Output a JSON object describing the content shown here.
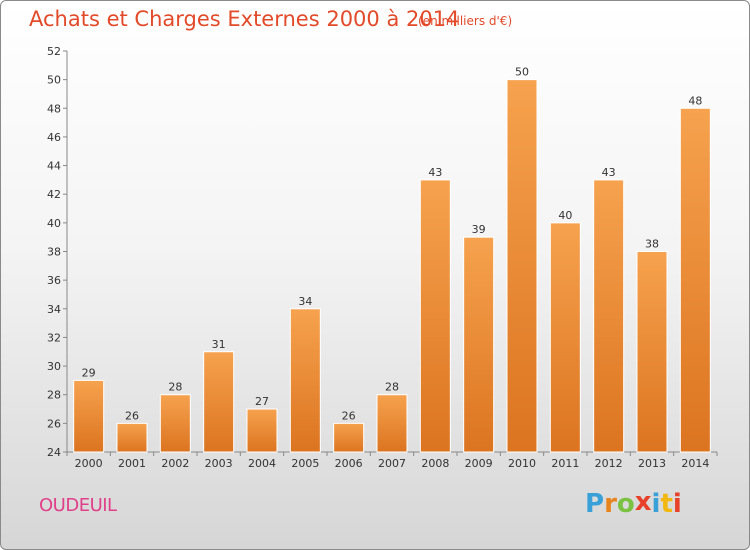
{
  "title": "Achats et Charges Externes 2000 à 2014",
  "subtitle": "(en milliers d'€)",
  "commune": "OUDEUIL",
  "logo": {
    "letters": [
      "P",
      "r",
      "o",
      "x",
      "i",
      "t",
      "i"
    ],
    "colors": [
      "#3aa0d8",
      "#e8841e",
      "#7cc242",
      "#e8412a",
      "#3aa0d8",
      "#f2b80f",
      "#e8412a"
    ]
  },
  "colors": {
    "bar": "#f09036",
    "title": "#e24a2a",
    "commune": "#e0408a"
  },
  "chart_data": {
    "type": "bar",
    "title": "Achats et Charges Externes 2000 à 2014",
    "categories": [
      "2000",
      "2001",
      "2002",
      "2003",
      "2004",
      "2005",
      "2006",
      "2007",
      "2008",
      "2009",
      "2010",
      "2011",
      "2012",
      "2013",
      "2014"
    ],
    "values": [
      29,
      26,
      28,
      31,
      27,
      34,
      26,
      28,
      43,
      39,
      50,
      40,
      43,
      38,
      48
    ],
    "ylim": [
      24,
      52
    ],
    "yticks": [
      24,
      26,
      28,
      30,
      32,
      34,
      36,
      38,
      40,
      42,
      44,
      46,
      48,
      50,
      52
    ],
    "xlabel": "",
    "ylabel": "",
    "grid": false,
    "data_labels": true
  }
}
